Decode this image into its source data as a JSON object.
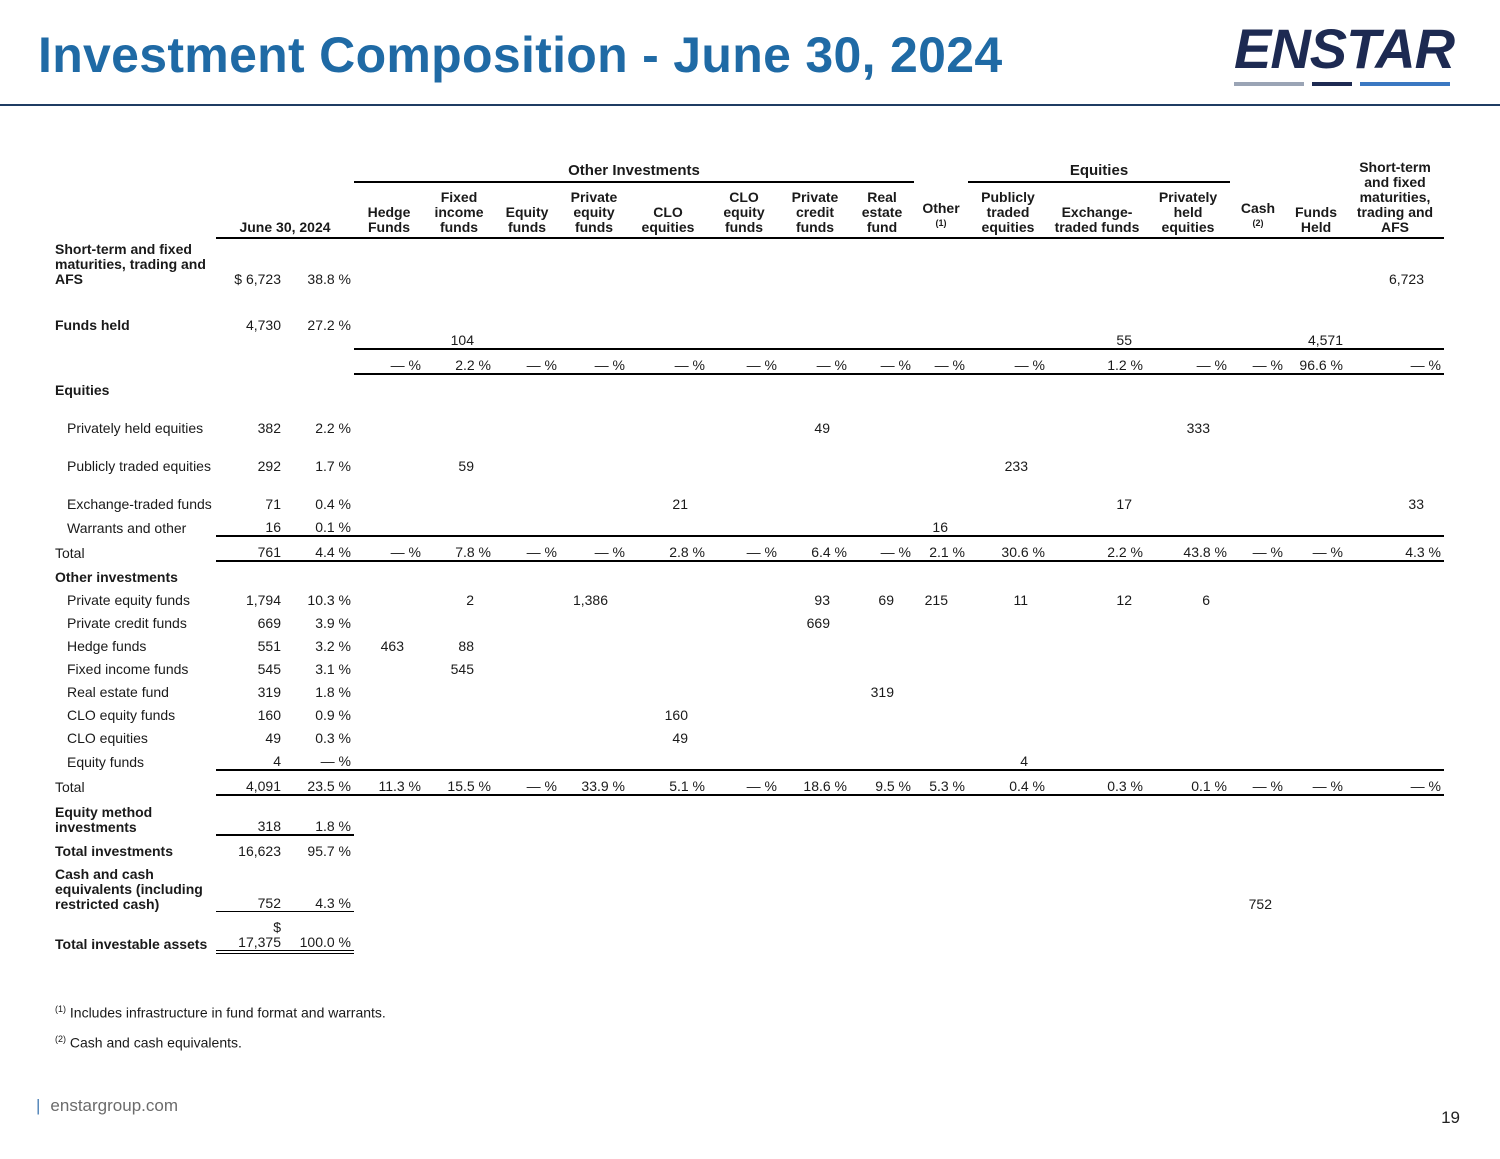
{
  "title": "Investment Composition - June 30, 2024",
  "logo_text": "ENSTAR",
  "headers": {
    "other_investments_group": "Other Investments",
    "equities_group": "Equities",
    "period": "June 30, 2024",
    "hedge_funds": "Hedge Funds",
    "fixed_income_funds": "Fixed income funds",
    "equity_funds": "Equity funds",
    "private_equity_funds": "Private equity funds",
    "clo_equities": "CLO equities",
    "clo_equity_funds": "CLO equity funds",
    "private_credit_funds": "Private credit funds",
    "real_estate_fund": "Real estate fund",
    "other": "Other",
    "other_note": "(1)",
    "publicly_traded_equities": "Publicly traded equities",
    "exchange_traded_funds": "Exchange- traded funds",
    "privately_held_equities": "Privately held equities",
    "cash": "Cash",
    "cash_note": "(2)",
    "funds_held": "Funds Held",
    "short_term": "Short-term and fixed maturities, trading and AFS"
  },
  "rows": {
    "short_term": {
      "label": "Short-term and fixed maturities, trading and AFS",
      "amount": "$ 6,723",
      "pct": "38.8 %",
      "short_term": "6,723"
    },
    "funds_held": {
      "label": "Funds held",
      "amount": "4,730",
      "pct": "27.2 %",
      "fixed_income": "104",
      "exchange_traded": "55",
      "funds_held": "4,571"
    },
    "funds_held_pct": [
      "— %",
      "2.2 %",
      "— %",
      "— %",
      "— %",
      "— %",
      "— %",
      "— %",
      "— %",
      "— %",
      "1.2 %",
      "— %",
      "— %",
      "96.6 %",
      "— %"
    ],
    "equities_heading": "Equities",
    "privately_held": {
      "label": "Privately held equities",
      "amount": "382",
      "pct": "2.2 %",
      "private_credit": "49",
      "privately_held": "333"
    },
    "publicly_traded": {
      "label": "Publicly traded equities",
      "amount": "292",
      "pct": "1.7 %",
      "fixed_income": "59",
      "publicly_traded": "233"
    },
    "exchange_traded": {
      "label": "Exchange-traded funds",
      "amount": "71",
      "pct": "0.4 %",
      "clo_equities": "21",
      "exchange_traded": "17",
      "short_term": "33"
    },
    "warrants": {
      "label": "Warrants and other",
      "amount": "16",
      "pct": "0.1 %",
      "other": "16"
    },
    "equities_total": {
      "label": "Total",
      "amount": "761",
      "pct": "4.4 %",
      "cols": [
        "— %",
        "7.8 %",
        "— %",
        "— %",
        "2.8 %",
        "— %",
        "6.4 %",
        "— %",
        "2.1 %",
        "30.6 %",
        "2.2 %",
        "43.8 %",
        "— %",
        "— %",
        "4.3 %"
      ]
    },
    "other_heading": "Other investments",
    "pe_funds": {
      "label": "Private equity funds",
      "amount": "1,794",
      "pct": "10.3 %",
      "fixed_income": "2",
      "private_equity": "1,386",
      "private_credit": "93",
      "real_estate": "69",
      "other": "215",
      "publicly_traded": "11",
      "exchange_traded": "12",
      "privately_held": "6"
    },
    "pc_funds": {
      "label": "Private credit funds",
      "amount": "669",
      "pct": "3.9 %",
      "private_credit": "669"
    },
    "hedge": {
      "label": "Hedge funds",
      "amount": "551",
      "pct": "3.2 %",
      "hedge": "463",
      "fixed_income": "88"
    },
    "fi_funds": {
      "label": "Fixed income funds",
      "amount": "545",
      "pct": "3.1 %",
      "fixed_income": "545"
    },
    "re_fund": {
      "label": "Real estate fund",
      "amount": "319",
      "pct": "1.8 %",
      "real_estate": "319"
    },
    "clo_eq_funds": {
      "label": "CLO equity funds",
      "amount": "160",
      "pct": "0.9 %",
      "clo_equities": "160"
    },
    "clo_eq": {
      "label": "CLO equities",
      "amount": "49",
      "pct": "0.3 %",
      "clo_equities": "49"
    },
    "eq_funds": {
      "label": "Equity funds",
      "amount": "4",
      "pct": "— %",
      "publicly_traded": "4"
    },
    "other_total": {
      "label": "Total",
      "amount": "4,091",
      "pct": "23.5 %",
      "cols": [
        "11.3 %",
        "15.5 %",
        "— %",
        "33.9 %",
        "5.1 %",
        "— %",
        "18.6 %",
        "9.5 %",
        "5.3 %",
        "0.4 %",
        "0.3 %",
        "0.1 %",
        "— %",
        "— %",
        "— %"
      ]
    },
    "equity_method": {
      "label": "Equity method investments",
      "amount": "318",
      "pct": "1.8 %"
    },
    "total_investments": {
      "label": "Total investments",
      "amount": "16,623",
      "pct": "95.7 %"
    },
    "cash": {
      "label": "Cash and cash equivalents (including restricted cash)",
      "amount": "752",
      "pct": "4.3 %",
      "cash": "752"
    },
    "total_investable": {
      "label": "Total investable assets",
      "currency": "$",
      "amount": "17,375",
      "pct": "100.0 %"
    }
  },
  "footnotes": {
    "n1_mark": "(1)",
    "n1": "Includes infrastructure in fund format and warrants.",
    "n2_mark": "(2)",
    "n2": "Cash and cash equivalents."
  },
  "footer": {
    "url": "enstargroup.com",
    "page": "19"
  },
  "colors": {
    "title": "#1f6aa5",
    "rule": "#1f3c63",
    "logo_navy": "#1d2a52",
    "logo_blue": "#3a78c2"
  }
}
